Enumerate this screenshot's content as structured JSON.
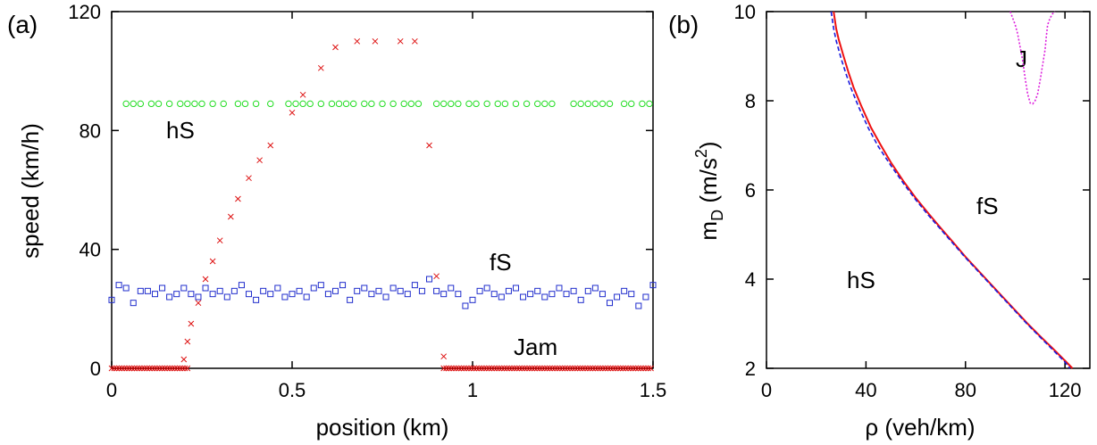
{
  "colors": {
    "hS_marker": "#22dd22",
    "fS_marker": "#1f2ccc",
    "jam_marker": "#dd1111",
    "boundary_solid": "#ee1111",
    "boundary_dashed": "#1a1add",
    "boundary_J": "#dd22dd"
  },
  "chart_data": [
    {
      "panel_label": "(a)",
      "type": "scatter",
      "xlabel": "position (km)",
      "ylabel": "speed (km/h)",
      "xlim": [
        0,
        1.5
      ],
      "ylim": [
        0,
        120
      ],
      "xticks": [
        "0",
        "0.5",
        "1",
        "1.5"
      ],
      "xtick_values": [
        0,
        0.5,
        1,
        1.5
      ],
      "yticks": [
        "0",
        "40",
        "80",
        "120"
      ],
      "ytick_values": [
        0,
        40,
        80,
        120
      ],
      "annotations": [
        "hS",
        "fS",
        "Jam"
      ],
      "grid": false,
      "series": [
        {
          "marker": "circle",
          "x": [
            0.04,
            0.06,
            0.08,
            0.11,
            0.13,
            0.16,
            0.19,
            0.21,
            0.23,
            0.25,
            0.28,
            0.31,
            0.35,
            0.37,
            0.4,
            0.44,
            0.49,
            0.51,
            0.53,
            0.55,
            0.58,
            0.61,
            0.63,
            0.65,
            0.67,
            0.7,
            0.72,
            0.75,
            0.78,
            0.81,
            0.83,
            0.85,
            0.9,
            0.92,
            0.94,
            0.96,
            0.99,
            1.01,
            1.04,
            1.07,
            1.09,
            1.12,
            1.15,
            1.18,
            1.2,
            1.22,
            1.28,
            1.3,
            1.32,
            1.34,
            1.36,
            1.38,
            1.42,
            1.44,
            1.47,
            1.49
          ],
          "y": [
            89,
            89,
            89,
            89,
            89,
            89,
            89,
            89,
            89,
            89,
            89,
            89,
            89,
            89,
            89,
            89,
            89,
            89,
            89,
            89,
            89,
            89,
            89,
            89,
            89,
            89,
            89,
            89,
            89,
            89,
            89,
            89,
            89,
            89,
            89,
            89,
            89,
            89,
            89,
            89,
            89,
            89,
            89,
            89,
            89,
            89,
            89,
            89,
            89,
            89,
            89,
            89,
            89,
            89,
            89,
            89
          ]
        },
        {
          "marker": "square",
          "x": [
            0.0,
            0.02,
            0.04,
            0.06,
            0.08,
            0.1,
            0.12,
            0.14,
            0.16,
            0.18,
            0.2,
            0.22,
            0.24,
            0.26,
            0.28,
            0.3,
            0.32,
            0.34,
            0.36,
            0.38,
            0.4,
            0.42,
            0.44,
            0.46,
            0.48,
            0.5,
            0.52,
            0.54,
            0.56,
            0.58,
            0.6,
            0.62,
            0.64,
            0.66,
            0.68,
            0.7,
            0.72,
            0.74,
            0.76,
            0.78,
            0.8,
            0.82,
            0.84,
            0.86,
            0.88,
            0.9,
            0.92,
            0.94,
            0.96,
            0.98,
            1.0,
            1.02,
            1.04,
            1.06,
            1.08,
            1.1,
            1.12,
            1.14,
            1.16,
            1.18,
            1.2,
            1.22,
            1.24,
            1.26,
            1.28,
            1.3,
            1.32,
            1.34,
            1.36,
            1.38,
            1.4,
            1.42,
            1.44,
            1.46,
            1.48,
            1.5
          ],
          "y": [
            23,
            28,
            27,
            22,
            26,
            26,
            25,
            27,
            24,
            25,
            27,
            25,
            24,
            27,
            25,
            26,
            24,
            26,
            28,
            25,
            23,
            26,
            25,
            27,
            24,
            25,
            26,
            24,
            27,
            28,
            25,
            26,
            28,
            23,
            26,
            27,
            25,
            26,
            24,
            27,
            26,
            25,
            28,
            26,
            30,
            26,
            25,
            27,
            25,
            21,
            23,
            26,
            27,
            25,
            24,
            26,
            27,
            24,
            25,
            26,
            24,
            25,
            27,
            25,
            26,
            23,
            26,
            27,
            25,
            22,
            24,
            26,
            25,
            21,
            24,
            28
          ]
        },
        {
          "marker": "cross",
          "x": [
            0.2,
            0.21,
            0.22,
            0.24,
            0.26,
            0.28,
            0.3,
            0.33,
            0.35,
            0.38,
            0.41,
            0.44,
            0.5,
            0.53,
            0.58,
            0.62,
            0.68,
            0.73,
            0.8,
            0.84,
            0.88,
            0.9,
            0.92
          ],
          "y": [
            3,
            9,
            15,
            22,
            30,
            36,
            43,
            51,
            57,
            64,
            70,
            75,
            86,
            92,
            101,
            108,
            110,
            110,
            110,
            110,
            75,
            31,
            4
          ]
        },
        {
          "marker": "cross-floor",
          "note": "dense row of stopped vehicles",
          "x_range_1": [
            0.0,
            0.21
          ],
          "x_range_2": [
            0.92,
            1.5
          ],
          "y": 0
        }
      ]
    },
    {
      "panel_label": "(b)",
      "type": "line",
      "xlabel": "ρ (veh/km)",
      "ylabel_main": "m",
      "ylabel_sub": "D",
      "ylabel_units_open": " (m/s",
      "ylabel_units_sup": "2",
      "ylabel_units_close": ")",
      "xlim": [
        0,
        130
      ],
      "ylim": [
        2,
        10
      ],
      "xticks": [
        "0",
        "40",
        "80",
        "120"
      ],
      "xtick_values": [
        0,
        40,
        80,
        120
      ],
      "yticks": [
        "2",
        "4",
        "6",
        "8",
        "10"
      ],
      "ytick_values": [
        2,
        4,
        6,
        8,
        10
      ],
      "annotations": [
        "J",
        "hS",
        "fS"
      ],
      "grid": false,
      "series": [
        {
          "style": "solid",
          "x": [
            27,
            28,
            29,
            31,
            33,
            35,
            38,
            42,
            46,
            50,
            55,
            60,
            65,
            70,
            75,
            80,
            85,
            90,
            95,
            100,
            105,
            110,
            115,
            120,
            123
          ],
          "y": [
            10,
            9.62,
            9.38,
            9.0,
            8.63,
            8.3,
            7.9,
            7.4,
            7.0,
            6.62,
            6.2,
            5.82,
            5.48,
            5.15,
            4.83,
            4.5,
            4.2,
            3.9,
            3.6,
            3.3,
            3.0,
            2.72,
            2.45,
            2.17,
            2.0
          ]
        },
        {
          "style": "dashed",
          "x": [
            26,
            27,
            28,
            30,
            32,
            34,
            37,
            41,
            45,
            50,
            55,
            60,
            65,
            70,
            75,
            80,
            85,
            90,
            95,
            100,
            105,
            110,
            115,
            120,
            122
          ],
          "y": [
            10,
            9.62,
            9.35,
            8.95,
            8.6,
            8.28,
            7.87,
            7.38,
            6.97,
            6.55,
            6.15,
            5.78,
            5.44,
            5.12,
            4.8,
            4.48,
            4.18,
            3.88,
            3.58,
            3.28,
            2.98,
            2.7,
            2.42,
            2.14,
            2.0
          ]
        },
        {
          "style": "dotted",
          "x": [
            98,
            99,
            100,
            101,
            102,
            103,
            104,
            105,
            106,
            107,
            108,
            109,
            110,
            111,
            112,
            112.5,
            113,
            114,
            115,
            116
          ],
          "y": [
            10,
            9.85,
            9.7,
            9.5,
            9.2,
            8.9,
            8.5,
            8.15,
            7.95,
            7.93,
            8.0,
            8.15,
            8.45,
            8.8,
            9.15,
            9.45,
            9.7,
            9.85,
            9.95,
            10
          ]
        }
      ]
    }
  ]
}
